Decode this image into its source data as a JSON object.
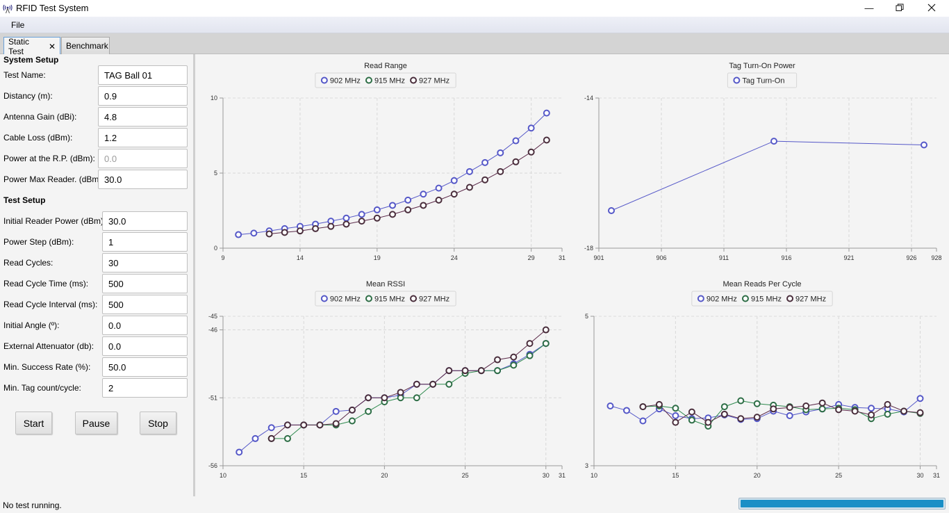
{
  "window": {
    "title": "RFID Test System",
    "minimize_icon": "minimize-icon",
    "restore_icon": "restore-icon",
    "close_icon": "close-icon"
  },
  "menu": {
    "file": "File"
  },
  "tabs": [
    {
      "label": "Static Test",
      "closable": true,
      "active": true
    },
    {
      "label": "Benchmark",
      "active": false
    }
  ],
  "system_setup": {
    "heading": "System Setup",
    "fields": [
      {
        "label": "Test Name:",
        "value": "TAG Ball 01"
      },
      {
        "label": "Distancy (m):",
        "value": "0.9"
      },
      {
        "label": "Antenna Gain (dBi):",
        "value": "4.8"
      },
      {
        "label": "Cable Loss (dBm):",
        "value": "1.2"
      },
      {
        "label": "Power at the R.P. (dBm):",
        "value": "0.0"
      },
      {
        "label": "Power Max Reader. (dBm):",
        "value": "30.0"
      }
    ]
  },
  "test_setup": {
    "heading": "Test Setup",
    "fields": [
      {
        "label": "Initial Reader Power (dBm):",
        "value": "30.0"
      },
      {
        "label": "Power Step (dBm):",
        "value": "1"
      },
      {
        "label": "Read Cycles:",
        "value": "30"
      },
      {
        "label": "Read Cycle Time (ms):",
        "value": "500"
      },
      {
        "label": "Read Cycle Interval (ms):",
        "value": "500"
      },
      {
        "label": "Initial Angle (º):",
        "value": "0.0"
      },
      {
        "label": "External Attenuator (db):",
        "value": "0.0"
      },
      {
        "label": "Min. Success Rate (%):",
        "value": "50.0"
      },
      {
        "label": "Min. Tag count/cycle:",
        "value": "2"
      }
    ]
  },
  "buttons": {
    "start": "Start",
    "pause": "Pause",
    "stop": "Stop"
  },
  "status": {
    "text": "No test running.",
    "progress": 1.0,
    "progress_color": "#1b8fc6"
  },
  "colors": {
    "902 MHz": "#5558c8",
    "915 MHz": "#2e6e46",
    "927 MHz": "#4a2e3c",
    "915_line": "#2e8a4e",
    "927_line": "#5a2848"
  },
  "chart_data": [
    {
      "type": "line",
      "title": "Read Range",
      "xlabel": "",
      "ylabel": "",
      "xlim": [
        9,
        31
      ],
      "ylim": [
        0,
        10
      ],
      "xticks": [
        "9",
        "14",
        "19",
        "24",
        "29",
        "31"
      ],
      "yticks": [
        "0",
        "5",
        "10"
      ],
      "grid": true,
      "legend": [
        "902 MHz",
        "915 MHz",
        "927 MHz"
      ],
      "series": [
        {
          "name": "902 MHz",
          "x": [
            10,
            11,
            12,
            13,
            14,
            15,
            16,
            17,
            18,
            19,
            20,
            21,
            22,
            23,
            24,
            25,
            26,
            27,
            28,
            29,
            30
          ],
          "y": [
            0.9,
            1.0,
            1.15,
            1.3,
            1.45,
            1.6,
            1.8,
            2.0,
            2.25,
            2.55,
            2.85,
            3.2,
            3.6,
            4.0,
            4.5,
            5.1,
            5.7,
            6.35,
            7.15,
            8.0,
            9.0
          ]
        },
        {
          "name": "915 MHz",
          "x": [],
          "y": []
        },
        {
          "name": "927 MHz",
          "x": [
            12,
            13,
            14,
            15,
            16,
            17,
            18,
            19,
            20,
            21,
            22,
            23,
            24,
            25,
            26,
            27,
            28,
            29,
            30
          ],
          "y": [
            0.95,
            1.05,
            1.15,
            1.3,
            1.45,
            1.6,
            1.8,
            2.0,
            2.25,
            2.55,
            2.85,
            3.2,
            3.6,
            4.05,
            4.55,
            5.1,
            5.75,
            6.4,
            7.2
          ]
        }
      ]
    },
    {
      "type": "line",
      "title": "Tag Turn-On Power",
      "xlabel": "",
      "ylabel": "",
      "xlim": [
        901,
        928
      ],
      "ylim": [
        -18,
        -14
      ],
      "xticks": [
        "901",
        "906",
        "911",
        "916",
        "921",
        "926",
        "928"
      ],
      "yticks": [
        "-18",
        "-14"
      ],
      "grid": true,
      "legend": [
        "Tag Turn-On"
      ],
      "series": [
        {
          "name": "Tag Turn-On",
          "x": [
            902,
            915,
            927
          ],
          "y": [
            -17.0,
            -15.15,
            -15.25
          ]
        }
      ]
    },
    {
      "type": "line",
      "title": "Mean RSSI",
      "xlabel": "",
      "ylabel": "",
      "xlim": [
        10,
        31
      ],
      "ylim": [
        -56,
        -45
      ],
      "xticks": [
        "10",
        "15",
        "20",
        "25",
        "30",
        "31"
      ],
      "yticks": [
        "-56",
        "-51",
        "-46",
        "-45"
      ],
      "grid": true,
      "legend": [
        "902 MHz",
        "915 MHz",
        "927 MHz"
      ],
      "series": [
        {
          "name": "902 MHz",
          "x": [
            11,
            12,
            13,
            14,
            15,
            16,
            17,
            18,
            19,
            20,
            21,
            22,
            23,
            24,
            25,
            26,
            27,
            28,
            29,
            30
          ],
          "y": [
            -55.0,
            -54.0,
            -53.2,
            -53.0,
            -53.0,
            -53.0,
            -52.0,
            -51.9,
            -51.0,
            -51.0,
            -50.8,
            -50.0,
            -50.0,
            -49.0,
            -49.0,
            -49.0,
            -49.0,
            -48.5,
            -47.8,
            -47.0
          ]
        },
        {
          "name": "915 MHz",
          "x": [
            13,
            14,
            15,
            16,
            17,
            18,
            19,
            20,
            21,
            22,
            23,
            24,
            25,
            26,
            27,
            28,
            29,
            30
          ],
          "y": [
            -54.0,
            -54.0,
            -53.0,
            -53.0,
            -53.0,
            -52.7,
            -52.0,
            -51.3,
            -51.0,
            -51.0,
            -50.0,
            -50.0,
            -49.2,
            -49.0,
            -49.0,
            -48.6,
            -47.9,
            -47.0
          ]
        },
        {
          "name": "927 MHz",
          "x": [
            13,
            14,
            15,
            16,
            17,
            18,
            19,
            20,
            21,
            22,
            23,
            24,
            25,
            26,
            27,
            28,
            29,
            30
          ],
          "y": [
            -54.0,
            -53.0,
            -53.0,
            -53.0,
            -52.9,
            -51.9,
            -51.0,
            -51.0,
            -50.6,
            -50.0,
            -50.0,
            -49.0,
            -49.0,
            -49.0,
            -48.2,
            -48.0,
            -47.0,
            -46.0
          ]
        }
      ]
    },
    {
      "type": "line",
      "title": "Mean Reads Per Cycle",
      "xlabel": "",
      "ylabel": "",
      "xlim": [
        10,
        31
      ],
      "ylim": [
        3,
        5
      ],
      "xticks": [
        "10",
        "15",
        "20",
        "25",
        "30",
        "31"
      ],
      "yticks": [
        "3",
        "5"
      ],
      "grid": true,
      "legend": [
        "902 MHz",
        "915 MHz",
        "927 MHz"
      ],
      "series": [
        {
          "name": "902 MHz",
          "x": [
            11,
            12,
            13,
            14,
            15,
            16,
            17,
            18,
            19,
            20,
            21,
            22,
            23,
            24,
            25,
            26,
            27,
            28,
            29,
            30
          ],
          "y": [
            3.8,
            3.74,
            3.6,
            3.76,
            3.67,
            3.63,
            3.64,
            3.68,
            3.62,
            3.63,
            3.73,
            3.67,
            3.72,
            3.76,
            3.82,
            3.78,
            3.77,
            3.76,
            3.72,
            3.9
          ]
        },
        {
          "name": "915 MHz",
          "x": [
            13,
            14,
            15,
            16,
            17,
            18,
            19,
            20,
            21,
            22,
            23,
            24,
            25,
            26,
            27,
            28,
            29,
            30
          ],
          "y": [
            3.79,
            3.8,
            3.77,
            3.61,
            3.53,
            3.79,
            3.87,
            3.83,
            3.81,
            3.79,
            3.75,
            3.76,
            3.77,
            3.75,
            3.63,
            3.69,
            3.73,
            3.7
          ]
        },
        {
          "name": "927 MHz",
          "x": [
            13,
            14,
            15,
            16,
            17,
            18,
            19,
            20,
            21,
            22,
            23,
            24,
            25,
            26,
            27,
            28,
            29,
            30
          ],
          "y": [
            3.79,
            3.82,
            3.58,
            3.72,
            3.58,
            3.69,
            3.63,
            3.65,
            3.76,
            3.78,
            3.8,
            3.84,
            3.75,
            3.73,
            3.68,
            3.82,
            3.73,
            3.71
          ]
        }
      ]
    }
  ]
}
